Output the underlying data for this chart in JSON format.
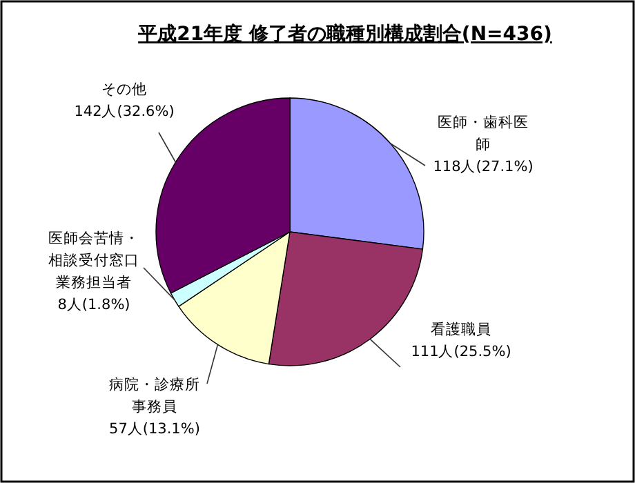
{
  "chart_data": {
    "type": "pie",
    "title": "平成21年度 修了者の職種別構成割合(N=436)",
    "categories": [
      "医師・歯科医師",
      "看護職員",
      "病院・診療所事務員",
      "医師会苦情・相談受付窓口業務担当者",
      "その他"
    ],
    "values": [
      118,
      111,
      57,
      8,
      142
    ],
    "value_labels": [
      "118人(27.1%)",
      "111人(25.5%)",
      "57人(13.1%)",
      "8人(1.8%)",
      "142人(32.6%)"
    ],
    "colors": [
      "#9999ff",
      "#993366",
      "#ffffcc",
      "#ccffff",
      "#660066"
    ]
  }
}
